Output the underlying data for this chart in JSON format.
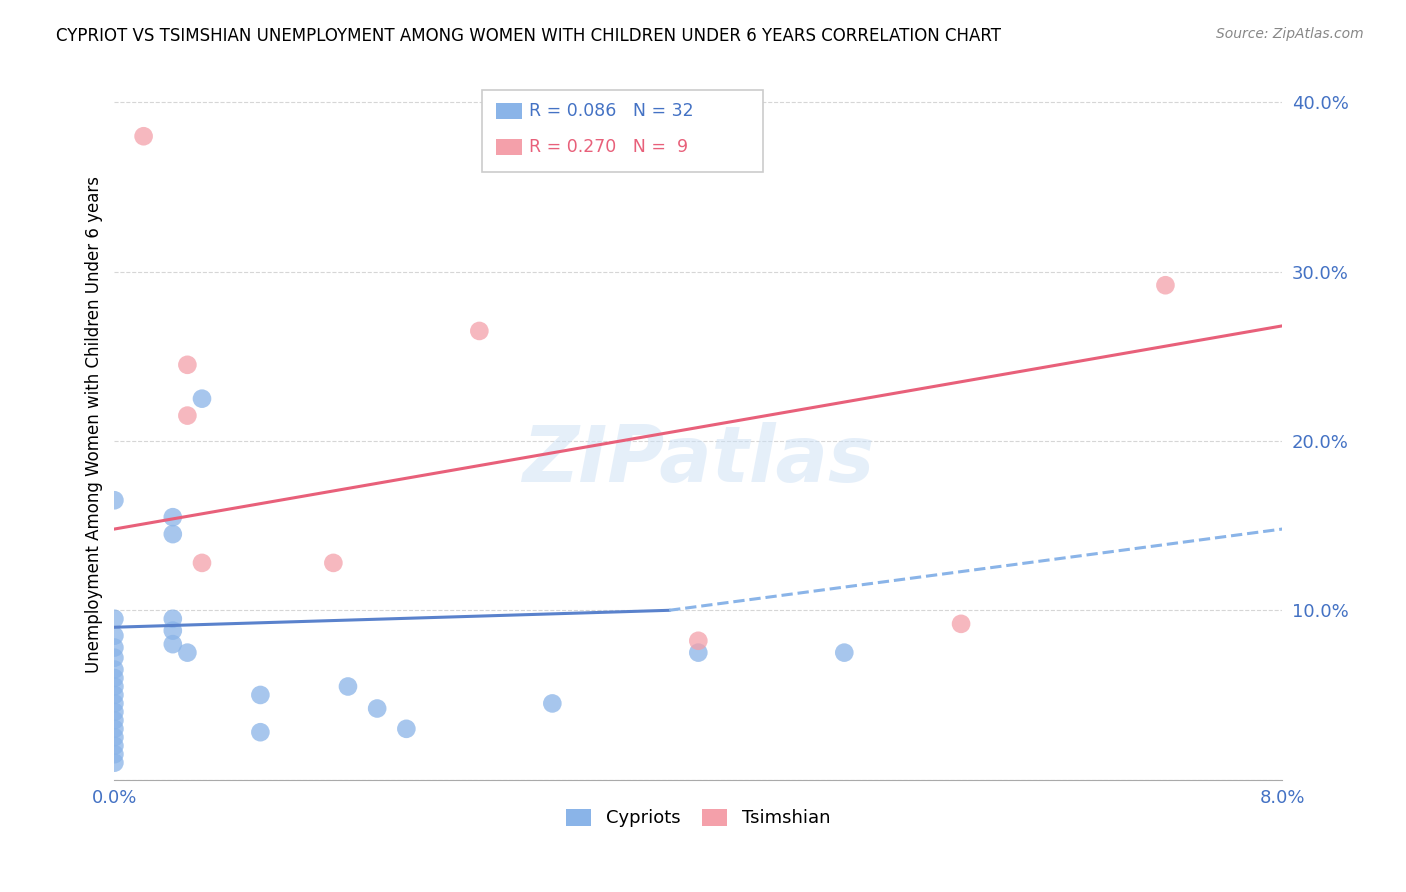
{
  "title": "CYPRIOT VS TSIMSHIAN UNEMPLOYMENT AMONG WOMEN WITH CHILDREN UNDER 6 YEARS CORRELATION CHART",
  "source": "Source: ZipAtlas.com",
  "ylabel": "Unemployment Among Women with Children Under 6 years",
  "xlim": [
    0.0,
    0.08
  ],
  "ylim": [
    0.0,
    0.42
  ],
  "xticks": [
    0.0,
    0.01,
    0.02,
    0.03,
    0.04,
    0.05,
    0.06,
    0.07,
    0.08
  ],
  "yticks": [
    0.0,
    0.1,
    0.2,
    0.3,
    0.4
  ],
  "ytick_labels": [
    "",
    "10.0%",
    "20.0%",
    "30.0%",
    "40.0%"
  ],
  "xtick_labels": [
    "0.0%",
    "",
    "",
    "",
    "",
    "",
    "",
    "",
    "8.0%"
  ],
  "blue_color": "#8ab4e8",
  "pink_color": "#f4a0aa",
  "trendline_blue_solid_color": "#5a82cc",
  "trendline_blue_dash_color": "#8ab4e8",
  "trendline_pink_color": "#e8607a",
  "legend_label_blue": "Cypriots",
  "legend_label_pink": "Tsimshian",
  "legend_r_blue": "R = 0.086",
  "legend_n_blue": "N = 32",
  "legend_r_pink": "R = 0.270",
  "legend_n_pink": "N =  9",
  "watermark": "ZIPatlas",
  "blue_points": [
    [
      0.0,
      0.165
    ],
    [
      0.0,
      0.095
    ],
    [
      0.0,
      0.085
    ],
    [
      0.0,
      0.078
    ],
    [
      0.0,
      0.072
    ],
    [
      0.0,
      0.065
    ],
    [
      0.0,
      0.06
    ],
    [
      0.0,
      0.055
    ],
    [
      0.0,
      0.05
    ],
    [
      0.0,
      0.045
    ],
    [
      0.0,
      0.04
    ],
    [
      0.0,
      0.035
    ],
    [
      0.0,
      0.03
    ],
    [
      0.0,
      0.025
    ],
    [
      0.0,
      0.02
    ],
    [
      0.0,
      0.015
    ],
    [
      0.0,
      0.01
    ],
    [
      0.004,
      0.155
    ],
    [
      0.004,
      0.145
    ],
    [
      0.004,
      0.095
    ],
    [
      0.004,
      0.088
    ],
    [
      0.004,
      0.08
    ],
    [
      0.005,
      0.075
    ],
    [
      0.006,
      0.225
    ],
    [
      0.01,
      0.05
    ],
    [
      0.01,
      0.028
    ],
    [
      0.016,
      0.055
    ],
    [
      0.018,
      0.042
    ],
    [
      0.02,
      0.03
    ],
    [
      0.03,
      0.045
    ],
    [
      0.04,
      0.075
    ],
    [
      0.05,
      0.075
    ]
  ],
  "pink_points": [
    [
      0.002,
      0.38
    ],
    [
      0.005,
      0.245
    ],
    [
      0.005,
      0.215
    ],
    [
      0.006,
      0.128
    ],
    [
      0.015,
      0.128
    ],
    [
      0.025,
      0.265
    ],
    [
      0.04,
      0.082
    ],
    [
      0.058,
      0.092
    ],
    [
      0.072,
      0.292
    ]
  ],
  "blue_trendline_solid": [
    [
      0.0,
      0.09
    ],
    [
      0.038,
      0.1
    ]
  ],
  "blue_trendline_dashed": [
    [
      0.038,
      0.1
    ],
    [
      0.08,
      0.148
    ]
  ],
  "pink_trendline": [
    [
      0.0,
      0.148
    ],
    [
      0.08,
      0.268
    ]
  ]
}
